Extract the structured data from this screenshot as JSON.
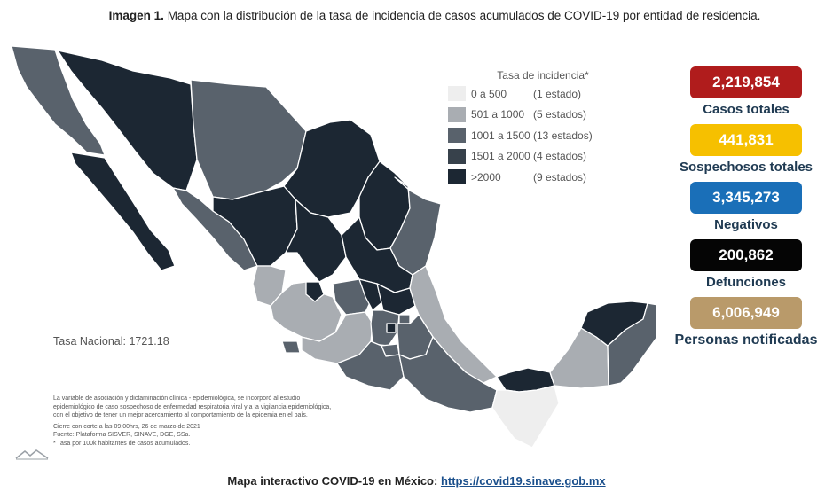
{
  "caption": {
    "prefix": "Imagen 1.",
    "text": "Mapa con la distribución de la tasa de incidencia de casos acumulados de COVID-19 por entidad de residencia."
  },
  "legend": {
    "title": "Tasa de incidencia*",
    "rows": [
      {
        "range": "0 a  500",
        "count": "(1 estado)",
        "color": "#eeeeee"
      },
      {
        "range": "501 a  1000",
        "count": "(5 estados)",
        "color": "#a9adb2"
      },
      {
        "range": "1001 a  1500",
        "count": "(13 estados)",
        "color": "#59626c"
      },
      {
        "range": "1501 a  2000",
        "count": "(4 estados)",
        "color": "#37414b"
      },
      {
        "range": ">2000",
        "count": "(9 estados)",
        "color": "#1c2733"
      }
    ]
  },
  "tasa_nacional": "Tasa Nacional: 1721.18",
  "note": {
    "line1": "La variable de asociación y dictaminación clínica - epidemiológica, se incorporó al estudio",
    "line2": "epidemiológico de caso sospechoso de enfermedad respiratoria viral y a la vigilancia epidemiológica,",
    "line3": "con el objetivo de tener un mejor acercamiento al comportamiento de la epidemia en el país.",
    "line4": "Cierre con corte a las 09:00hrs, 26 de marzo de 2021",
    "line5": "Fuente: Plataforma SISVER, SINAVE, DGE, SSa.",
    "line6": "* Tasa por 100k habitantes de casos acumulados."
  },
  "stats": [
    {
      "value": "2,219,854",
      "label": "Casos totales",
      "color": "#b01c1c",
      "text_color": "#ffffff"
    },
    {
      "value": "441,831",
      "label": "Sospechosos totales",
      "color": "#f6c000",
      "text_color": "#ffffff"
    },
    {
      "value": "3,345,273",
      "label": "Negativos",
      "color": "#1a6fb8",
      "text_color": "#ffffff"
    },
    {
      "value": "200,862",
      "label": "Defunciones",
      "color": "#050505",
      "text_color": "#ffffff"
    },
    {
      "value": "6,006,949",
      "label": "Personas notificadas",
      "color": "#b99a6a",
      "text_color": "#ffffff"
    }
  ],
  "footer": {
    "text": "Mapa interactivo COVID-19 en México:",
    "link": "https://covid19.sinave.gob.mx"
  }
}
